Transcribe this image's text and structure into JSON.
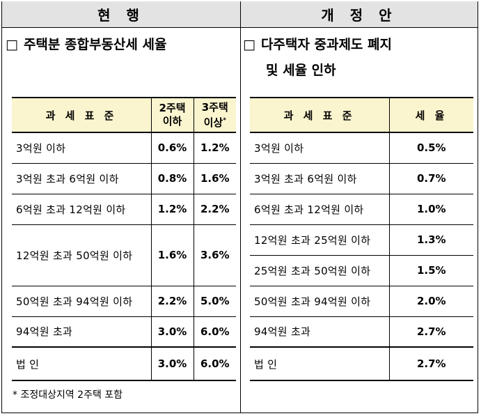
{
  "left": {
    "header": "현 행",
    "section_box": "□",
    "section_title": "주택분 종합부동산세 세율",
    "table": {
      "col_header": "과 세 표 준",
      "col_2house": "2주택 이하",
      "col_3house": "3주택 이상",
      "col_3house_mark": "*",
      "rows": [
        {
          "label": "3억원 이하",
          "v2": "0.6%",
          "v3": "1.2%"
        },
        {
          "label": "3억원 초과 6억원 이하",
          "v2": "0.8%",
          "v3": "1.6%"
        },
        {
          "label": "6억원 초과 12억원 이하",
          "v2": "1.2%",
          "v3": "2.2%"
        },
        {
          "label": "12억원 초과 50억원 이하",
          "v2": "1.6%",
          "v3": "3.6%"
        },
        {
          "label": "50억원 초과 94억원 이하",
          "v2": "2.2%",
          "v3": "5.0%"
        },
        {
          "label": "94억원 초과",
          "v2": "3.0%",
          "v3": "6.0%"
        },
        {
          "label": "법 인",
          "v2": "3.0%",
          "v3": "6.0%"
        }
      ]
    },
    "footnote": "* 조정대상지역 2주택 포함"
  },
  "right": {
    "header": "개 정 안",
    "section_box": "□",
    "section_title_line1": "다주택자 중과제도 폐지",
    "section_title_line2": "및 세율 인하",
    "table": {
      "col_header": "과 세 표 준",
      "col_rate": "세 율",
      "rows": [
        {
          "label": "3억원 이하",
          "rate": "0.5%"
        },
        {
          "label": "3억원 초과 6억원 이하",
          "rate": "0.7%"
        },
        {
          "label": "6억원 초과 12억원 이하",
          "rate": "1.0%"
        },
        {
          "label": "12억원 초과 25억원 이하",
          "rate": "1.3%"
        },
        {
          "label": "25억원 초과 50억원 이하",
          "rate": "1.5%"
        },
        {
          "label": "50억원 초과 94억원 이하",
          "rate": "2.0%"
        },
        {
          "label": "94억원 초과",
          "rate": "2.7%"
        },
        {
          "label": "법 인",
          "rate": "2.7%"
        }
      ]
    }
  }
}
